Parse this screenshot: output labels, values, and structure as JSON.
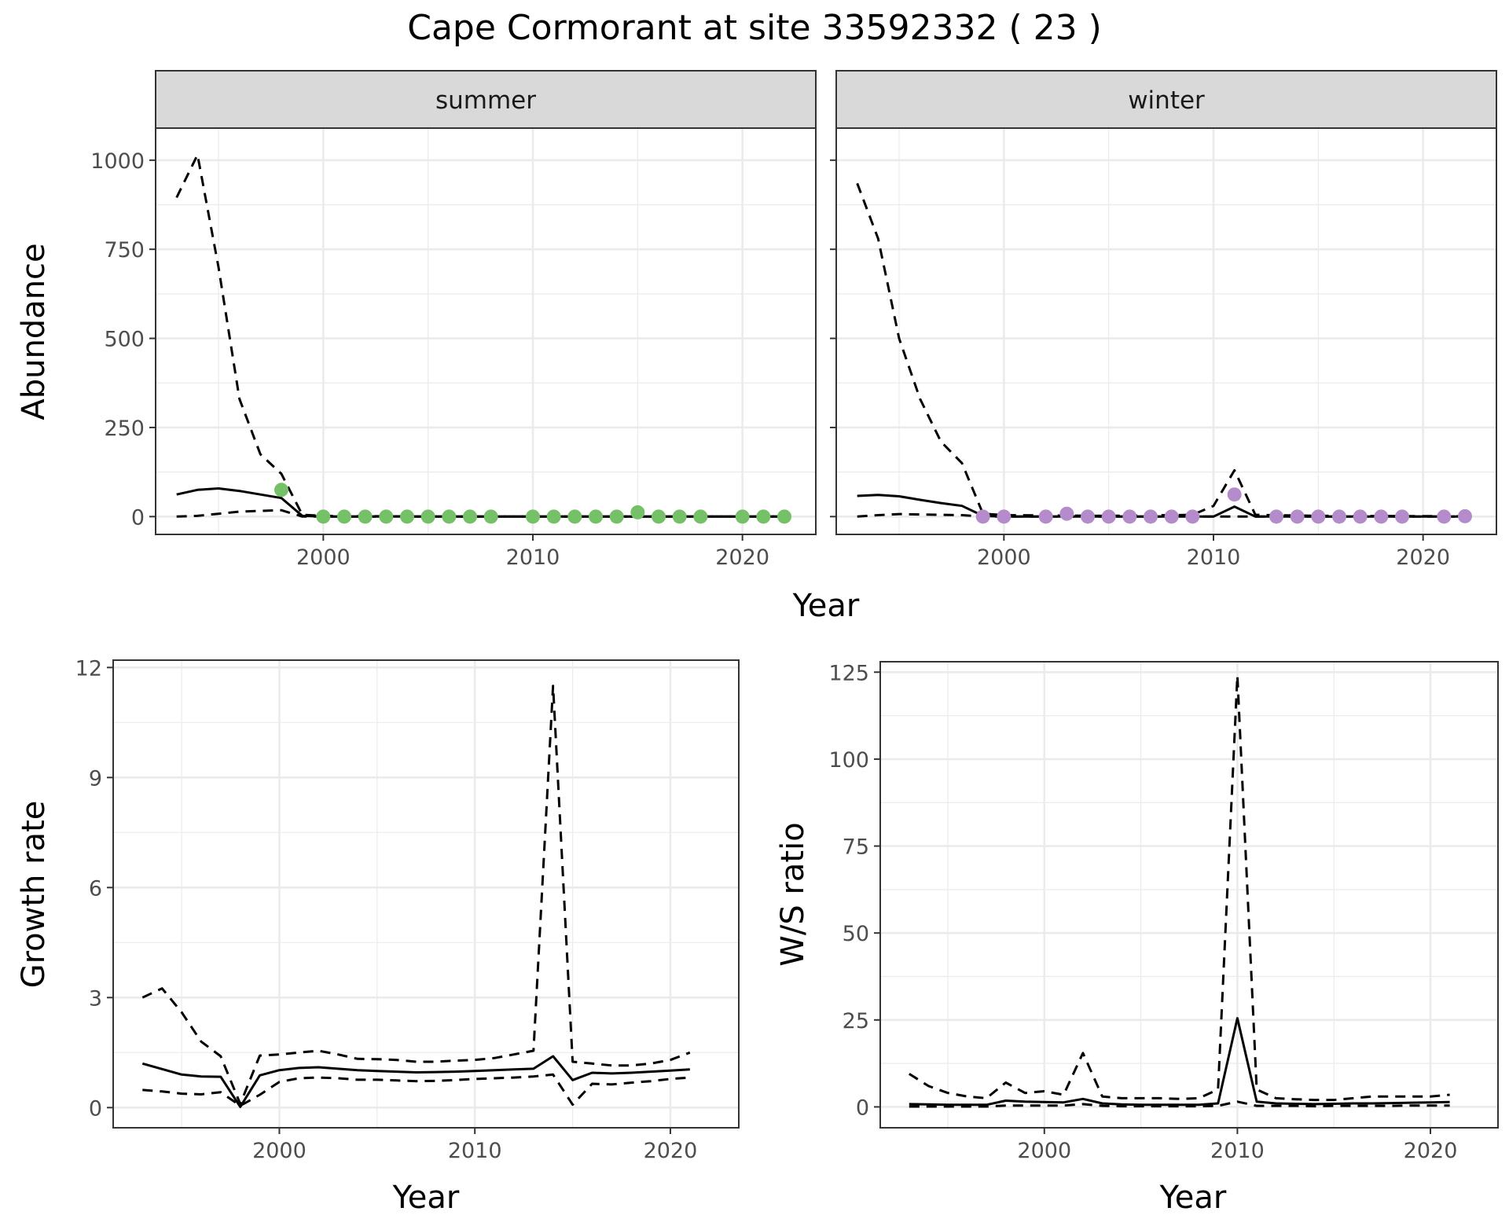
{
  "title": "Cape Cormorant at site 33592332 ( 23 )",
  "colors": {
    "summer_points": "#74c167",
    "winter_points": "#b48ccc",
    "line": "#000000",
    "grid": "#ebebeb",
    "strip": "#d9d9d9"
  },
  "chart_data": [
    {
      "type": "line",
      "panel": "abundance",
      "facet": "summer",
      "xlabel": "Year",
      "ylabel": "Abundance",
      "xlim": [
        1992,
        2023.5
      ],
      "ylim": [
        -50,
        1090
      ],
      "xticks": [
        2000,
        2010,
        2020
      ],
      "yticks": [
        0,
        250,
        500,
        750,
        1000
      ],
      "series": [
        {
          "role": "estimate",
          "style": "solid",
          "x": [
            1993,
            1994,
            1995,
            1996,
            1997,
            1998,
            1999,
            2000,
            2005,
            2010,
            2015,
            2022
          ],
          "y": [
            62,
            75,
            79,
            72,
            62,
            52,
            2,
            0,
            0,
            0,
            0,
            0
          ]
        },
        {
          "role": "upper",
          "style": "dashed",
          "x": [
            1993,
            1994,
            1995,
            1996,
            1997,
            1998,
            1999,
            2000,
            2005,
            2010,
            2015,
            2022
          ],
          "y": [
            895,
            1015,
            700,
            330,
            175,
            120,
            5,
            2,
            0,
            0,
            0,
            0
          ]
        },
        {
          "role": "lower",
          "style": "dashed",
          "x": [
            1993,
            1994,
            1995,
            1996,
            1997,
            1998,
            1999,
            2000,
            2022
          ],
          "y": [
            0,
            2,
            8,
            14,
            16,
            18,
            0,
            0,
            0
          ]
        },
        {
          "role": "counts",
          "style": "points",
          "x": [
            1998,
            2000,
            2001,
            2002,
            2003,
            2004,
            2005,
            2006,
            2007,
            2008,
            2010,
            2011,
            2012,
            2013,
            2014,
            2015,
            2016,
            2017,
            2018,
            2020,
            2021,
            2022
          ],
          "y": [
            75,
            0,
            0,
            0,
            0,
            0,
            0,
            0,
            0,
            0,
            0,
            0,
            0,
            0,
            0,
            12,
            0,
            0,
            0,
            0,
            0,
            0
          ]
        }
      ]
    },
    {
      "type": "line",
      "panel": "abundance",
      "facet": "winter",
      "xlabel": "Year",
      "ylabel": "Abundance",
      "xlim": [
        1992,
        2023.5
      ],
      "ylim": [
        -50,
        1090
      ],
      "xticks": [
        2000,
        2010,
        2020
      ],
      "yticks": [
        0,
        250,
        500,
        750,
        1000
      ],
      "series": [
        {
          "role": "estimate",
          "style": "solid",
          "x": [
            1993,
            1994,
            1995,
            1996,
            1997,
            1998,
            1999,
            2000,
            2005,
            2010,
            2011,
            2012,
            2015,
            2022
          ],
          "y": [
            58,
            61,
            57,
            47,
            38,
            30,
            2,
            0,
            0,
            0,
            28,
            0,
            0,
            0
          ]
        },
        {
          "role": "upper",
          "style": "dashed",
          "x": [
            1993,
            1994,
            1995,
            1996,
            1997,
            1998,
            1999,
            2000,
            2005,
            2009,
            2010,
            2011,
            2012,
            2015,
            2022
          ],
          "y": [
            935,
            780,
            500,
            330,
            210,
            150,
            8,
            4,
            2,
            5,
            30,
            130,
            5,
            2,
            1
          ]
        },
        {
          "role": "lower",
          "style": "dashed",
          "x": [
            1993,
            1994,
            1995,
            1996,
            1997,
            1998,
            1999,
            2000,
            2022
          ],
          "y": [
            0,
            4,
            7,
            6,
            5,
            4,
            0,
            0,
            0
          ]
        },
        {
          "role": "counts",
          "style": "points",
          "x": [
            1999,
            2000,
            2002,
            2003,
            2004,
            2005,
            2006,
            2007,
            2008,
            2009,
            2011,
            2013,
            2014,
            2015,
            2016,
            2017,
            2018,
            2019,
            2021,
            2022
          ],
          "y": [
            0,
            0,
            0,
            8,
            0,
            0,
            0,
            0,
            0,
            0,
            62,
            0,
            0,
            0,
            0,
            0,
            0,
            0,
            0,
            1
          ]
        }
      ]
    },
    {
      "type": "line",
      "panel": "growth",
      "xlabel": "Year",
      "ylabel": "Growth rate",
      "xlim": [
        1991.5,
        2023.5
      ],
      "ylim": [
        -0.55,
        12.2
      ],
      "xticks": [
        2000,
        2010,
        2020
      ],
      "yticks": [
        0,
        3,
        6,
        9,
        12
      ],
      "series": [
        {
          "role": "estimate",
          "style": "solid",
          "x": [
            1993,
            1994,
            1995,
            1996,
            1997,
            1998,
            1999,
            2000,
            2001,
            2002,
            2003,
            2004,
            2005,
            2006,
            2007,
            2008,
            2009,
            2010,
            2011,
            2012,
            2013,
            2014,
            2015,
            2016,
            2017,
            2018,
            2019,
            2020,
            2021
          ],
          "y": [
            1.2,
            1.05,
            0.9,
            0.85,
            0.84,
            0.02,
            0.88,
            1.02,
            1.08,
            1.1,
            1.06,
            1.02,
            1.0,
            0.98,
            0.96,
            0.97,
            0.98,
            1.0,
            1.02,
            1.04,
            1.06,
            1.4,
            0.75,
            0.95,
            0.93,
            0.95,
            0.98,
            1.01,
            1.04
          ]
        },
        {
          "role": "upper",
          "style": "dashed",
          "x": [
            1993,
            1994,
            1995,
            1996,
            1997,
            1998,
            1999,
            2000,
            2001,
            2002,
            2003,
            2004,
            2005,
            2006,
            2007,
            2008,
            2009,
            2010,
            2011,
            2012,
            2013,
            2014,
            2015,
            2016,
            2017,
            2018,
            2019,
            2020,
            2021
          ],
          "y": [
            3.0,
            3.25,
            2.6,
            1.8,
            1.4,
            0.1,
            1.42,
            1.45,
            1.5,
            1.55,
            1.45,
            1.33,
            1.32,
            1.3,
            1.25,
            1.25,
            1.28,
            1.3,
            1.35,
            1.45,
            1.55,
            11.5,
            1.25,
            1.2,
            1.15,
            1.15,
            1.2,
            1.3,
            1.5
          ]
        },
        {
          "role": "lower",
          "style": "dashed",
          "x": [
            1993,
            1994,
            1995,
            1996,
            1997,
            1998,
            1999,
            2000,
            2001,
            2002,
            2003,
            2004,
            2005,
            2006,
            2007,
            2008,
            2009,
            2010,
            2011,
            2012,
            2013,
            2014,
            2015,
            2016,
            2017,
            2018,
            2019,
            2020,
            2021
          ],
          "y": [
            0.48,
            0.44,
            0.38,
            0.36,
            0.42,
            0.05,
            0.35,
            0.7,
            0.8,
            0.82,
            0.8,
            0.76,
            0.76,
            0.74,
            0.72,
            0.73,
            0.75,
            0.78,
            0.8,
            0.82,
            0.85,
            0.9,
            0.08,
            0.65,
            0.63,
            0.68,
            0.72,
            0.78,
            0.82
          ]
        }
      ]
    },
    {
      "type": "line",
      "panel": "ratio",
      "xlabel": "Year",
      "ylabel": "W/S ratio",
      "xlim": [
        1991.5,
        2023.5
      ],
      "ylim": [
        -6,
        128
      ],
      "xticks": [
        2000,
        2010,
        2020
      ],
      "yticks": [
        0,
        25,
        50,
        75,
        100,
        125
      ],
      "series": [
        {
          "role": "estimate",
          "style": "solid",
          "x": [
            1993,
            1994,
            1995,
            1996,
            1997,
            1998,
            1999,
            2000,
            2001,
            2002,
            2003,
            2004,
            2005,
            2006,
            2007,
            2008,
            2009,
            2010,
            2011,
            2012,
            2013,
            2014,
            2015,
            2016,
            2017,
            2018,
            2019,
            2020,
            2021
          ],
          "y": [
            0.8,
            0.7,
            0.6,
            0.6,
            0.6,
            1.8,
            1.5,
            1.4,
            1.3,
            2.3,
            1.0,
            0.7,
            0.6,
            0.6,
            0.6,
            0.6,
            1.0,
            25.5,
            1.5,
            1.0,
            0.9,
            0.8,
            0.9,
            1.0,
            1.0,
            1.1,
            1.2,
            1.3,
            1.4
          ]
        },
        {
          "role": "upper",
          "style": "dashed",
          "x": [
            1993,
            1994,
            1995,
            1996,
            1997,
            1998,
            1999,
            2000,
            2001,
            2002,
            2003,
            2004,
            2005,
            2006,
            2007,
            2008,
            2009,
            2010,
            2011,
            2012,
            2013,
            2014,
            2015,
            2016,
            2017,
            2018,
            2019,
            2020,
            2021
          ],
          "y": [
            9.5,
            6.0,
            4.0,
            3.0,
            2.5,
            7.0,
            4.0,
            4.5,
            3.5,
            15.5,
            3.0,
            2.5,
            2.5,
            2.5,
            2.3,
            2.5,
            5.0,
            124,
            5.0,
            2.5,
            2.2,
            2.0,
            2.0,
            2.5,
            3.0,
            3.0,
            3.0,
            3.0,
            3.5
          ]
        },
        {
          "role": "lower",
          "style": "dashed",
          "x": [
            1993,
            1994,
            1995,
            1996,
            1997,
            1998,
            1999,
            2000,
            2001,
            2002,
            2003,
            2004,
            2005,
            2006,
            2007,
            2008,
            2009,
            2010,
            2011,
            2012,
            2013,
            2014,
            2015,
            2016,
            2017,
            2018,
            2019,
            2020,
            2021
          ],
          "y": [
            0.1,
            0.1,
            0.1,
            0.1,
            0.1,
            0.4,
            0.4,
            0.4,
            0.4,
            0.8,
            0.3,
            0.2,
            0.2,
            0.2,
            0.2,
            0.2,
            0.3,
            1.5,
            0.3,
            0.3,
            0.3,
            0.2,
            0.3,
            0.3,
            0.3,
            0.3,
            0.4,
            0.4,
            0.4
          ]
        }
      ]
    }
  ]
}
